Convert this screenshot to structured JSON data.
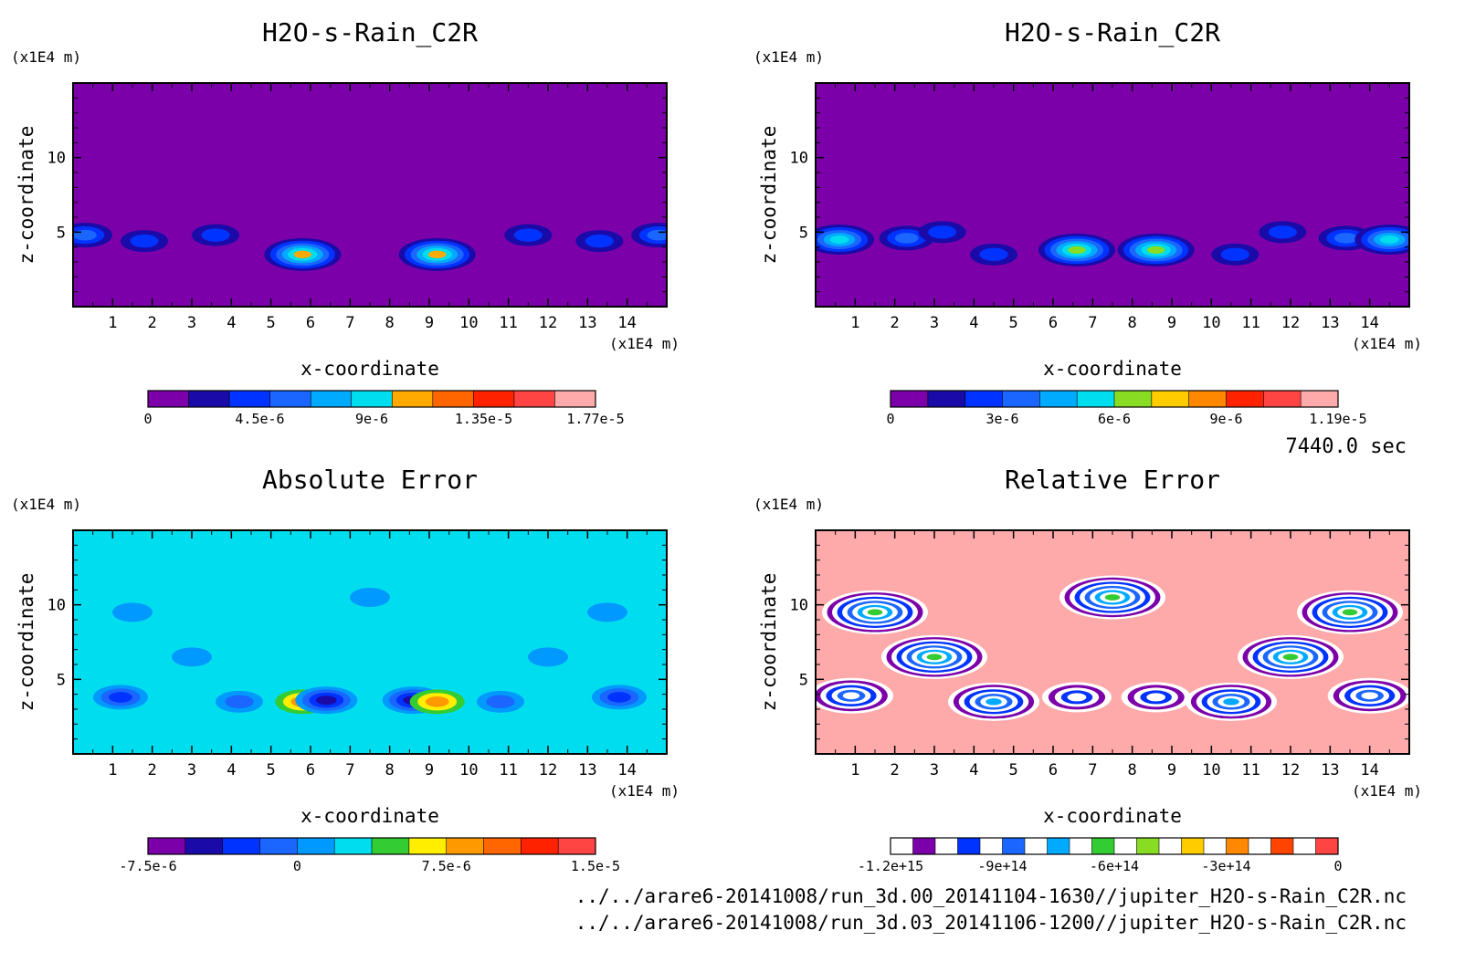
{
  "figure": {
    "time_label": "7440.0 sec",
    "files": [
      "../../arare6-20141008/run_3d.00_20141104-1630//jupiter_H2O-s-Rain_C2R.nc",
      "../../arare6-20141008/run_3d.03_20141106-1200//jupiter_H2O-s-Rain_C2R.nc"
    ]
  },
  "chart_data": [
    {
      "type": "heatmap",
      "title": "H2O-s-Rain_C2R",
      "xlabel": "x-coordinate",
      "ylabel": "z-coordinate",
      "x_unit": "(x1E4 m)",
      "y_unit": "(x1E4 m)",
      "xlim": [
        0,
        15
      ],
      "ylim": [
        0,
        15
      ],
      "x_ticks": [
        "1",
        "2",
        "3",
        "4",
        "5",
        "6",
        "7",
        "8",
        "9",
        "10",
        "11",
        "12",
        "13",
        "14"
      ],
      "y_ticks": [
        "5",
        "10"
      ],
      "background_color": "#7b00a9",
      "colorbar": {
        "colors": [
          "#7b00a9",
          "#1a0aa8",
          "#0033ff",
          "#1a66ff",
          "#00aaff",
          "#00ddee",
          "#ffaa00",
          "#ff6600",
          "#ff2200",
          "#ff4444",
          "#ffaaaa"
        ],
        "labels": [
          "0",
          "4.5e-6",
          "9e-6",
          "1.35e-5",
          "1.77e-5"
        ]
      },
      "features": [
        {
          "x": 0.3,
          "z": 4.8,
          "level": 3
        },
        {
          "x": 1.8,
          "z": 4.4,
          "level": 2
        },
        {
          "x": 3.6,
          "z": 4.8,
          "level": 2
        },
        {
          "x": 5.8,
          "z": 3.5,
          "level": 6
        },
        {
          "x": 9.2,
          "z": 3.5,
          "level": 6
        },
        {
          "x": 11.5,
          "z": 4.8,
          "level": 2
        },
        {
          "x": 13.3,
          "z": 4.4,
          "level": 2
        },
        {
          "x": 14.8,
          "z": 4.8,
          "level": 3
        }
      ]
    },
    {
      "type": "heatmap",
      "title": "H2O-s-Rain_C2R",
      "xlabel": "x-coordinate",
      "ylabel": "z-coordinate",
      "x_unit": "(x1E4 m)",
      "y_unit": "(x1E4 m)",
      "xlim": [
        0,
        15
      ],
      "ylim": [
        0,
        15
      ],
      "x_ticks": [
        "1",
        "2",
        "3",
        "4",
        "5",
        "6",
        "7",
        "8",
        "9",
        "10",
        "11",
        "12",
        "13",
        "14"
      ],
      "y_ticks": [
        "5",
        "10"
      ],
      "background_color": "#7b00a9",
      "colorbar": {
        "colors": [
          "#7b00a9",
          "#1a0aa8",
          "#0033ff",
          "#1a66ff",
          "#00aaff",
          "#00ddee",
          "#88dd22",
          "#ffcc00",
          "#ff8800",
          "#ff2200",
          "#ff4444",
          "#ffaaaa"
        ],
        "labels": [
          "0",
          "3e-6",
          "6e-6",
          "9e-6",
          "1.19e-5"
        ]
      },
      "features": [
        {
          "x": 0.6,
          "z": 4.5,
          "level": 5
        },
        {
          "x": 2.3,
          "z": 4.6,
          "level": 3
        },
        {
          "x": 3.2,
          "z": 5.0,
          "level": 2
        },
        {
          "x": 4.5,
          "z": 3.5,
          "level": 2
        },
        {
          "x": 6.6,
          "z": 3.8,
          "level": 6
        },
        {
          "x": 8.6,
          "z": 3.8,
          "level": 6
        },
        {
          "x": 10.6,
          "z": 3.5,
          "level": 2
        },
        {
          "x": 11.8,
          "z": 5.0,
          "level": 2
        },
        {
          "x": 13.4,
          "z": 4.6,
          "level": 3
        },
        {
          "x": 14.5,
          "z": 4.5,
          "level": 5
        }
      ]
    },
    {
      "type": "heatmap",
      "title": "Absolute Error",
      "xlabel": "x-coordinate",
      "ylabel": "z-coordinate",
      "x_unit": "(x1E4 m)",
      "y_unit": "(x1E4 m)",
      "xlim": [
        0,
        15
      ],
      "ylim": [
        0,
        15
      ],
      "x_ticks": [
        "1",
        "2",
        "3",
        "4",
        "5",
        "6",
        "7",
        "8",
        "9",
        "10",
        "11",
        "12",
        "13",
        "14"
      ],
      "y_ticks": [
        "5",
        "10"
      ],
      "background_color": "#00ddee",
      "colorbar": {
        "colors": [
          "#7b00a9",
          "#1a0aa8",
          "#0033ff",
          "#1a66ff",
          "#0099ff",
          "#00ddee",
          "#33cc33",
          "#ffee00",
          "#ff9900",
          "#ff6600",
          "#ff2200",
          "#ff4444"
        ],
        "labels": [
          "-7.5e-6",
          "0",
          "7.5e-6",
          "1.5e-5"
        ]
      },
      "features": [
        {
          "x": 1.5,
          "z": 9.5,
          "level": 4
        },
        {
          "x": 3.0,
          "z": 6.5,
          "level": 4
        },
        {
          "x": 7.5,
          "z": 10.5,
          "level": 4
        },
        {
          "x": 12.0,
          "z": 6.5,
          "level": 4
        },
        {
          "x": 13.5,
          "z": 9.5,
          "level": 4
        },
        {
          "x": 1.2,
          "z": 3.8,
          "level": 2
        },
        {
          "x": 4.2,
          "z": 3.5,
          "level": 3
        },
        {
          "x": 5.8,
          "z": 3.5,
          "level": 8
        },
        {
          "x": 6.4,
          "z": 3.6,
          "level": 1
        },
        {
          "x": 8.6,
          "z": 3.6,
          "level": 1
        },
        {
          "x": 9.2,
          "z": 3.5,
          "level": 8
        },
        {
          "x": 10.8,
          "z": 3.5,
          "level": 3
        },
        {
          "x": 13.8,
          "z": 3.8,
          "level": 2
        }
      ]
    },
    {
      "type": "heatmap",
      "title": "Relative Error",
      "xlabel": "x-coordinate",
      "ylabel": "z-coordinate",
      "x_unit": "(x1E4 m)",
      "y_unit": "(x1E4 m)",
      "xlim": [
        0,
        15
      ],
      "ylim": [
        0,
        15
      ],
      "x_ticks": [
        "1",
        "2",
        "3",
        "4",
        "5",
        "6",
        "7",
        "8",
        "9",
        "10",
        "11",
        "12",
        "13",
        "14"
      ],
      "y_ticks": [
        "5",
        "10"
      ],
      "background_color": "#ffaaaa",
      "colorbar": {
        "colors": [
          "#ffffff",
          "#7b00a9",
          "#ffffff",
          "#0033ff",
          "#ffffff",
          "#1a66ff",
          "#ffffff",
          "#00aaff",
          "#ffffff",
          "#33cc33",
          "#ffffff",
          "#88dd22",
          "#ffffff",
          "#ffcc00",
          "#ffffff",
          "#ff8800",
          "#ffffff",
          "#ff4400",
          "#ffffff",
          "#ff4444"
        ],
        "labels": [
          "-1.2e+15",
          "-9e+14",
          "-6e+14",
          "-3e+14",
          "0"
        ]
      },
      "features": [
        {
          "x": 1.5,
          "z": 9.5,
          "level": 9
        },
        {
          "x": 3.0,
          "z": 6.5,
          "level": 9
        },
        {
          "x": 7.5,
          "z": 10.5,
          "level": 9
        },
        {
          "x": 12.0,
          "z": 6.5,
          "level": 9
        },
        {
          "x": 13.5,
          "z": 9.5,
          "level": 9
        },
        {
          "x": 0.9,
          "z": 3.9,
          "level": 6
        },
        {
          "x": 4.5,
          "z": 3.5,
          "level": 7
        },
        {
          "x": 6.6,
          "z": 3.8,
          "level": 4
        },
        {
          "x": 8.6,
          "z": 3.8,
          "level": 4
        },
        {
          "x": 10.5,
          "z": 3.5,
          "level": 7
        },
        {
          "x": 14.0,
          "z": 3.9,
          "level": 6
        }
      ]
    }
  ]
}
